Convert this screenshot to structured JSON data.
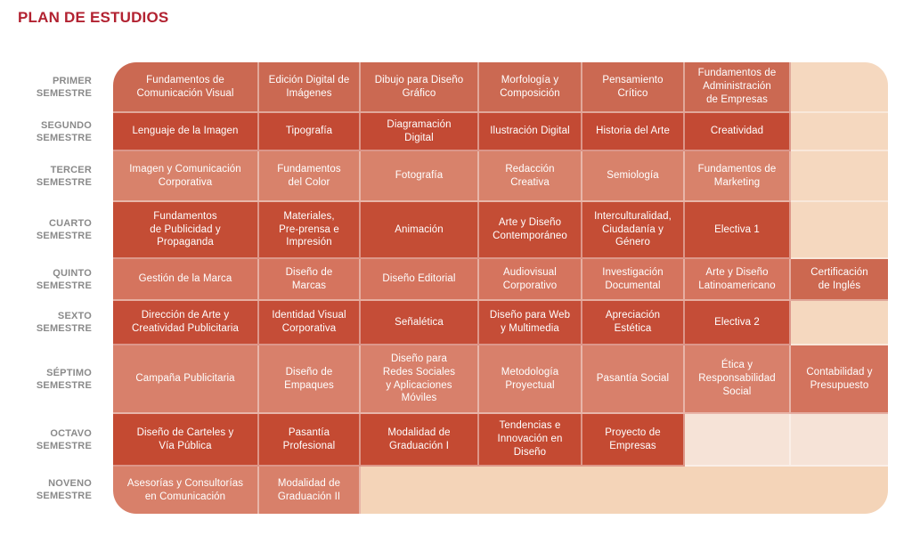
{
  "title": "PLAN DE ESTUDIOS",
  "palette": {
    "title_color": "#B22231",
    "label_color": "#8A8A8A",
    "cell_text_color": "#FFFFFF",
    "divider": "rgba(255,255,255,0.42)",
    "empty_default": "#F5D8BF",
    "empty_row8": "#F6E3D7",
    "empty_row9": "#F4D4B8"
  },
  "rows": [
    {
      "label": "PRIMER\nSEMESTRE",
      "cells": [
        {
          "text": "Fundamentos de\nComunicación Visual",
          "bg": "#CB6952"
        },
        {
          "text": "Edición Digital de\nImágenes",
          "bg": "#CB6952"
        },
        {
          "text": "Dibujo para Diseño\nGráfico",
          "bg": "#CB6952"
        },
        {
          "text": "Morfología y\nComposición",
          "bg": "#CB6952"
        },
        {
          "text": "Pensamiento\nCrítico",
          "bg": "#CB6952"
        },
        {
          "text": "Fundamentos de\nAdministración\nde Empresas",
          "bg": "#CB6952"
        },
        {
          "text": "",
          "bg": "#F5D8BF"
        }
      ]
    },
    {
      "label": "SEGUNDO\nSEMESTRE",
      "cells": [
        {
          "text": "Lenguaje de la Imagen",
          "bg": "#C34A34"
        },
        {
          "text": "Tipografía",
          "bg": "#C34A34"
        },
        {
          "text": "Diagramación\nDigital",
          "bg": "#C34A34"
        },
        {
          "text": "Ilustración Digital",
          "bg": "#C34A34"
        },
        {
          "text": "Historia del Arte",
          "bg": "#C34A34"
        },
        {
          "text": "Creatividad",
          "bg": "#C34A34"
        },
        {
          "text": "",
          "bg": "#F5D8BF"
        }
      ]
    },
    {
      "label": "TERCER\nSEMESTRE",
      "cells": [
        {
          "text": "Imagen y Comunicación\nCorporativa",
          "bg": "#D8826B"
        },
        {
          "text": "Fundamentos\ndel Color",
          "bg": "#D8826B"
        },
        {
          "text": "Fotografía",
          "bg": "#D8826B"
        },
        {
          "text": "Redacción\nCreativa",
          "bg": "#D8826B"
        },
        {
          "text": "Semiología",
          "bg": "#D8826B"
        },
        {
          "text": "Fundamentos de\nMarketing",
          "bg": "#D8826B"
        },
        {
          "text": "",
          "bg": "#F5D8BF"
        }
      ]
    },
    {
      "label": "CUARTO\nSEMESTRE",
      "cells": [
        {
          "text": "Fundamentos\nde Publicidad y\nPropaganda",
          "bg": "#C44D35"
        },
        {
          "text": "Materiales,\nPre-prensa e\nImpresión",
          "bg": "#C44D35"
        },
        {
          "text": "Animación",
          "bg": "#C44D35"
        },
        {
          "text": "Arte y Diseño\nContemporáneo",
          "bg": "#C44D35"
        },
        {
          "text": "Interculturalidad,\nCiudadanía y\nGénero",
          "bg": "#C44D35"
        },
        {
          "text": "Electiva 1",
          "bg": "#C44D35"
        },
        {
          "text": "",
          "bg": "#F5D8BF"
        }
      ]
    },
    {
      "label": "QUINTO\nSEMESTRE",
      "cells": [
        {
          "text": "Gestión de la Marca",
          "bg": "#D5745E"
        },
        {
          "text": "Diseño de\nMarcas",
          "bg": "#D5745E"
        },
        {
          "text": "Diseño Editorial",
          "bg": "#D5745E"
        },
        {
          "text": "Audiovisual\nCorporativo",
          "bg": "#D5745E"
        },
        {
          "text": "Investigación\nDocumental",
          "bg": "#D5745E"
        },
        {
          "text": "Arte y Diseño\nLatinoamericano",
          "bg": "#D5745E"
        },
        {
          "text": "Certificación\nde Inglés",
          "bg": "#CC6850"
        }
      ]
    },
    {
      "label": "SEXTO\nSEMESTRE",
      "cells": [
        {
          "text": "Dirección de Arte y\nCreatividad Publicitaria",
          "bg": "#C54D37"
        },
        {
          "text": "Identidad Visual\nCorporativa",
          "bg": "#C54D37"
        },
        {
          "text": "Señalética",
          "bg": "#C54D37"
        },
        {
          "text": "Diseño para Web\ny Multimedia",
          "bg": "#C54D37"
        },
        {
          "text": "Apreciación\nEstética",
          "bg": "#C54D37"
        },
        {
          "text": "Electiva 2",
          "bg": "#C54D37"
        },
        {
          "text": "",
          "bg": "#F5D8BF"
        }
      ]
    },
    {
      "label": "SÉPTIMO\nSEMESTRE",
      "cells": [
        {
          "text": "Campaña Publicitaria",
          "bg": "#D8806B"
        },
        {
          "text": "Diseño de\nEmpaques",
          "bg": "#D8806B"
        },
        {
          "text": "Diseño para\nRedes Sociales\ny Aplicaciones\nMóviles",
          "bg": "#D8806B"
        },
        {
          "text": "Metodología\nProyectual",
          "bg": "#D8806B"
        },
        {
          "text": "Pasantía Social",
          "bg": "#D8806B"
        },
        {
          "text": "Ética y\nResponsabilidad\nSocial",
          "bg": "#D8806B"
        },
        {
          "text": "Contabilidad y\nPresupuesto",
          "bg": "#D3735D"
        }
      ]
    },
    {
      "label": "OCTAVO\nSEMESTRE",
      "cells": [
        {
          "text": "Diseño de Carteles y\nVía Pública",
          "bg": "#C44A32"
        },
        {
          "text": "Pasantía\nProfesional",
          "bg": "#C44A32"
        },
        {
          "text": "Modalidad de\nGraduación I",
          "bg": "#C44A32"
        },
        {
          "text": "Tendencias e\nInnovación en\nDiseño",
          "bg": "#C44A32"
        },
        {
          "text": "Proyecto de\nEmpresas",
          "bg": "#C44A32"
        },
        {
          "text": "",
          "bg": "#F6E3D7"
        },
        {
          "text": "",
          "bg": "#F6E3D7"
        }
      ]
    },
    {
      "label": "NOVENO\nSEMESTRE",
      "cells": [
        {
          "text": "Asesorías y Consultorías\nen Comunicación",
          "bg": "#D8806A"
        },
        {
          "text": "Modalidad de\nGraduación II",
          "bg": "#D8806A"
        },
        {
          "text": "",
          "bg": "#F4D4B8",
          "span": 5
        }
      ]
    }
  ]
}
